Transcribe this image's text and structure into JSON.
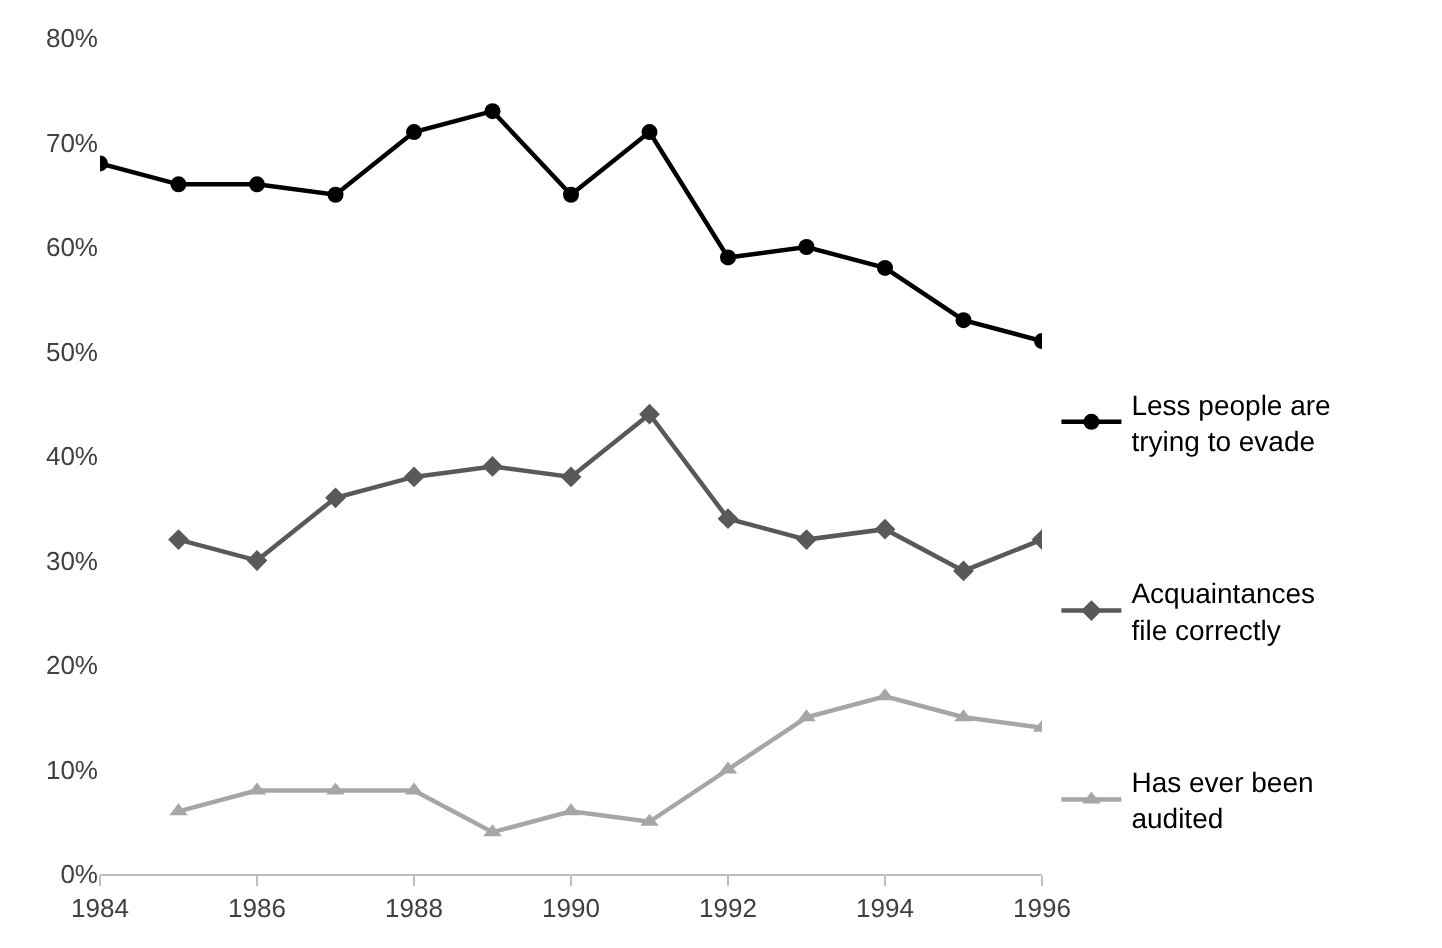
{
  "chart_data": {
    "type": "line",
    "x": [
      1984,
      1985,
      1986,
      1987,
      1988,
      1989,
      1990,
      1991,
      1992,
      1993,
      1994,
      1995,
      1996
    ],
    "series": [
      {
        "name": "Less people are trying to evade",
        "color": "#000000",
        "marker": "circle",
        "values": [
          68,
          66,
          66,
          65,
          71,
          73,
          65,
          71,
          59,
          60,
          58,
          53,
          51
        ]
      },
      {
        "name": "Acquaintances file correctly",
        "color": "#595959",
        "marker": "diamond",
        "values": [
          null,
          32,
          30,
          36,
          38,
          39,
          38,
          44,
          34,
          32,
          33,
          29,
          32
        ]
      },
      {
        "name": "Has ever been audited",
        "color": "#a6a6a6",
        "marker": "triangle",
        "values": [
          null,
          6,
          8,
          8,
          8,
          4,
          6,
          5,
          10,
          15,
          17,
          15,
          14
        ]
      }
    ],
    "xlim": [
      1984,
      1996
    ],
    "xticks": [
      1984,
      1986,
      1988,
      1990,
      1992,
      1994,
      1996
    ],
    "ylim": [
      0,
      80
    ],
    "yticks": [
      {
        "value": 0,
        "label": "0%"
      },
      {
        "value": 10,
        "label": "10%"
      },
      {
        "value": 20,
        "label": "20%"
      },
      {
        "value": 30,
        "label": "30%"
      },
      {
        "value": 40,
        "label": "40%"
      },
      {
        "value": 50,
        "label": "50%"
      },
      {
        "value": 60,
        "label": "60%"
      },
      {
        "value": 70,
        "label": "70%"
      },
      {
        "value": 80,
        "label": "80%"
      }
    ],
    "grid": false,
    "legend": "right",
    "line_style": "solid"
  }
}
